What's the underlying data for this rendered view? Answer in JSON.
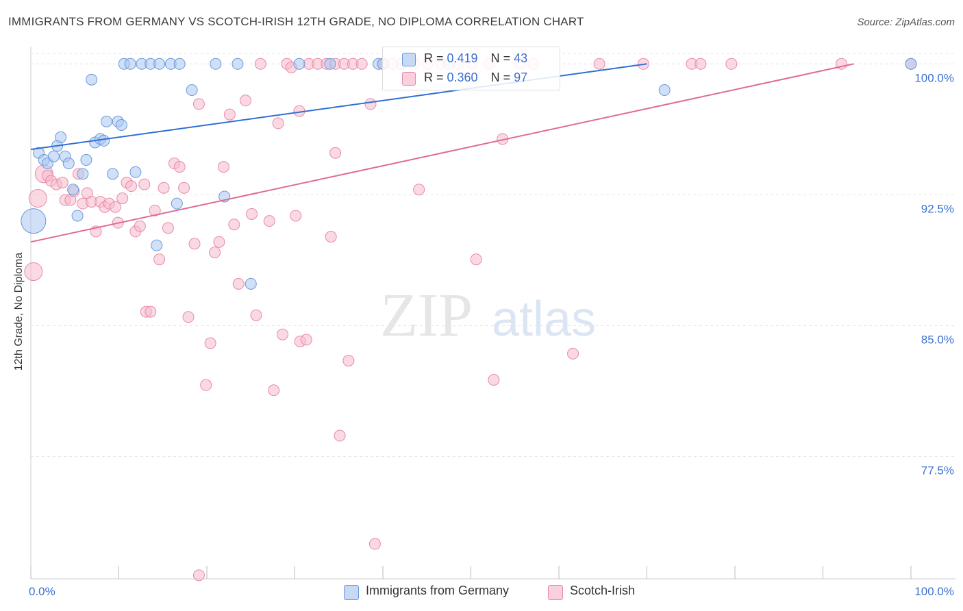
{
  "title": "IMMIGRANTS FROM GERMANY VS SCOTCH-IRISH 12TH GRADE, NO DIPLOMA CORRELATION CHART",
  "source": "Source: ZipAtlas.com",
  "watermark": {
    "zip": "ZIP",
    "atlas": "atlas"
  },
  "colors": {
    "blue_fill": "#a9c6ee",
    "blue_stroke": "#6a98dc",
    "blue_line": "#2d6fd4",
    "pink_fill": "#f5b9cc",
    "pink_stroke": "#e88aa8",
    "pink_line": "#e06b93",
    "axis_text": "#3a6fd1",
    "grid": "#e4e4e4"
  },
  "legend": {
    "rows": [
      {
        "r_label": "R = ",
        "r_value": "0.419",
        "n_label": "N = ",
        "n_value": "43"
      },
      {
        "r_label": "R = ",
        "r_value": "0.360",
        "n_label": "N = ",
        "n_value": "97"
      }
    ]
  },
  "bottom_legend": [
    "Immigrants from Germany",
    "Scotch-Irish"
  ],
  "chart_data": {
    "type": "scatter",
    "title": "IMMIGRANTS FROM GERMANY VS SCOTCH-IRISH 12TH GRADE, NO DIPLOMA CORRELATION CHART",
    "xlabel": "",
    "ylabel": "12th Grade, No Diploma",
    "xlim": [
      0,
      100
    ],
    "ylim": [
      70.5,
      100.6
    ],
    "x_tick_labels": [
      "0.0%",
      "100.0%"
    ],
    "y_ticks": [
      {
        "value": 100.0,
        "label": "100.0%"
      },
      {
        "value": 92.5,
        "label": "92.5%"
      },
      {
        "value": 85.0,
        "label": "85.0%"
      },
      {
        "value": 77.5,
        "label": "77.5%"
      }
    ],
    "series": [
      {
        "name": "Immigrants from Germany",
        "R": 0.419,
        "N": 43,
        "trend": {
          "x0": 0,
          "y0": 95.1,
          "x1": 70,
          "y1": 100.0
        },
        "points": [
          {
            "x": 0.3,
            "y": 91.0,
            "s": 3
          },
          {
            "x": 0.9,
            "y": 94.9,
            "s": 1
          },
          {
            "x": 1.5,
            "y": 94.5,
            "s": 1
          },
          {
            "x": 1.9,
            "y": 94.3,
            "s": 1
          },
          {
            "x": 2.6,
            "y": 94.7,
            "s": 1
          },
          {
            "x": 3.0,
            "y": 95.3,
            "s": 1
          },
          {
            "x": 3.4,
            "y": 95.8,
            "s": 1
          },
          {
            "x": 3.9,
            "y": 94.7,
            "s": 1
          },
          {
            "x": 4.3,
            "y": 94.3,
            "s": 1
          },
          {
            "x": 4.8,
            "y": 92.8,
            "s": 1
          },
          {
            "x": 5.3,
            "y": 91.3,
            "s": 1
          },
          {
            "x": 5.9,
            "y": 93.7,
            "s": 1
          },
          {
            "x": 6.3,
            "y": 94.5,
            "s": 1
          },
          {
            "x": 6.9,
            "y": 99.1,
            "s": 1
          },
          {
            "x": 7.3,
            "y": 95.5,
            "s": 1
          },
          {
            "x": 7.9,
            "y": 95.7,
            "s": 1
          },
          {
            "x": 8.3,
            "y": 95.6,
            "s": 1
          },
          {
            "x": 8.6,
            "y": 96.7,
            "s": 1
          },
          {
            "x": 9.3,
            "y": 93.7,
            "s": 1
          },
          {
            "x": 9.9,
            "y": 96.7,
            "s": 1
          },
          {
            "x": 10.3,
            "y": 96.5,
            "s": 1
          },
          {
            "x": 10.6,
            "y": 100.0,
            "s": 1
          },
          {
            "x": 11.3,
            "y": 100.0,
            "s": 1
          },
          {
            "x": 11.9,
            "y": 93.8,
            "s": 1
          },
          {
            "x": 12.6,
            "y": 100.0,
            "s": 1
          },
          {
            "x": 13.6,
            "y": 100.0,
            "s": 1
          },
          {
            "x": 14.6,
            "y": 100.0,
            "s": 1
          },
          {
            "x": 14.3,
            "y": 89.6,
            "s": 1
          },
          {
            "x": 15.9,
            "y": 100.0,
            "s": 1
          },
          {
            "x": 16.6,
            "y": 92.0,
            "s": 1
          },
          {
            "x": 16.9,
            "y": 100.0,
            "s": 1
          },
          {
            "x": 18.3,
            "y": 98.5,
            "s": 1
          },
          {
            "x": 21.0,
            "y": 100.0,
            "s": 1
          },
          {
            "x": 22.0,
            "y": 92.4,
            "s": 1
          },
          {
            "x": 23.5,
            "y": 100.0,
            "s": 1
          },
          {
            "x": 25.0,
            "y": 87.4,
            "s": 1
          },
          {
            "x": 30.5,
            "y": 100.0,
            "s": 1
          },
          {
            "x": 34.0,
            "y": 100.0,
            "s": 1
          },
          {
            "x": 39.5,
            "y": 100.0,
            "s": 1
          },
          {
            "x": 47.5,
            "y": 100.0,
            "s": 1
          },
          {
            "x": 72.0,
            "y": 98.5,
            "s": 1
          },
          {
            "x": 100.0,
            "y": 100.0,
            "s": 1
          },
          {
            "x": 40.0,
            "y": 100.0,
            "s": 1
          }
        ]
      },
      {
        "name": "Scotch-Irish",
        "R": 0.36,
        "N": 97,
        "trend": {
          "x0": 0,
          "y0": 89.8,
          "x1": 93.5,
          "y1": 100.0
        },
        "points": [
          {
            "x": 0.3,
            "y": 88.1,
            "s": 2
          },
          {
            "x": 0.8,
            "y": 92.3,
            "s": 2
          },
          {
            "x": 1.5,
            "y": 93.7,
            "s": 2
          },
          {
            "x": 1.9,
            "y": 93.6,
            "s": 1
          },
          {
            "x": 2.3,
            "y": 93.3,
            "s": 1
          },
          {
            "x": 2.9,
            "y": 93.1,
            "s": 1
          },
          {
            "x": 3.6,
            "y": 93.2,
            "s": 1
          },
          {
            "x": 3.9,
            "y": 92.2,
            "s": 1
          },
          {
            "x": 4.5,
            "y": 92.2,
            "s": 1
          },
          {
            "x": 4.9,
            "y": 92.7,
            "s": 1
          },
          {
            "x": 5.4,
            "y": 93.7,
            "s": 1
          },
          {
            "x": 5.9,
            "y": 92.0,
            "s": 1
          },
          {
            "x": 6.4,
            "y": 92.6,
            "s": 1
          },
          {
            "x": 6.9,
            "y": 92.1,
            "s": 1
          },
          {
            "x": 7.4,
            "y": 90.4,
            "s": 1
          },
          {
            "x": 7.9,
            "y": 92.1,
            "s": 1
          },
          {
            "x": 8.4,
            "y": 91.8,
            "s": 1
          },
          {
            "x": 8.9,
            "y": 92.0,
            "s": 1
          },
          {
            "x": 9.6,
            "y": 91.8,
            "s": 1
          },
          {
            "x": 9.9,
            "y": 90.9,
            "s": 1
          },
          {
            "x": 10.4,
            "y": 92.3,
            "s": 1
          },
          {
            "x": 10.9,
            "y": 93.2,
            "s": 1
          },
          {
            "x": 11.4,
            "y": 93.0,
            "s": 1
          },
          {
            "x": 11.9,
            "y": 90.4,
            "s": 1
          },
          {
            "x": 12.4,
            "y": 90.7,
            "s": 1
          },
          {
            "x": 12.9,
            "y": 93.1,
            "s": 1
          },
          {
            "x": 13.1,
            "y": 85.8,
            "s": 1
          },
          {
            "x": 13.6,
            "y": 85.8,
            "s": 1
          },
          {
            "x": 14.1,
            "y": 91.6,
            "s": 1
          },
          {
            "x": 14.6,
            "y": 88.8,
            "s": 1
          },
          {
            "x": 15.1,
            "y": 92.9,
            "s": 1
          },
          {
            "x": 15.6,
            "y": 90.6,
            "s": 1
          },
          {
            "x": 16.3,
            "y": 94.3,
            "s": 1
          },
          {
            "x": 16.9,
            "y": 94.1,
            "s": 1
          },
          {
            "x": 17.4,
            "y": 92.9,
            "s": 1
          },
          {
            "x": 17.9,
            "y": 85.5,
            "s": 1
          },
          {
            "x": 18.6,
            "y": 89.7,
            "s": 1
          },
          {
            "x": 19.1,
            "y": 70.7,
            "s": 1
          },
          {
            "x": 19.1,
            "y": 97.7,
            "s": 1
          },
          {
            "x": 19.9,
            "y": 81.6,
            "s": 1
          },
          {
            "x": 20.4,
            "y": 84.0,
            "s": 1
          },
          {
            "x": 20.9,
            "y": 89.2,
            "s": 1
          },
          {
            "x": 21.4,
            "y": 89.8,
            "s": 1
          },
          {
            "x": 21.9,
            "y": 94.1,
            "s": 1
          },
          {
            "x": 22.6,
            "y": 97.1,
            "s": 1
          },
          {
            "x": 23.1,
            "y": 90.8,
            "s": 1
          },
          {
            "x": 23.6,
            "y": 87.4,
            "s": 1
          },
          {
            "x": 24.4,
            "y": 97.9,
            "s": 1
          },
          {
            "x": 25.1,
            "y": 91.4,
            "s": 1
          },
          {
            "x": 25.6,
            "y": 85.6,
            "s": 1
          },
          {
            "x": 26.1,
            "y": 100.0,
            "s": 1
          },
          {
            "x": 27.1,
            "y": 91.0,
            "s": 1
          },
          {
            "x": 27.6,
            "y": 81.3,
            "s": 1
          },
          {
            "x": 28.1,
            "y": 96.6,
            "s": 1
          },
          {
            "x": 28.6,
            "y": 84.5,
            "s": 1
          },
          {
            "x": 29.1,
            "y": 100.0,
            "s": 1
          },
          {
            "x": 29.6,
            "y": 99.8,
            "s": 1
          },
          {
            "x": 30.1,
            "y": 91.3,
            "s": 1
          },
          {
            "x": 30.5,
            "y": 97.3,
            "s": 1
          },
          {
            "x": 30.6,
            "y": 84.1,
            "s": 1
          },
          {
            "x": 31.3,
            "y": 84.2,
            "s": 1
          },
          {
            "x": 31.6,
            "y": 100.0,
            "s": 1
          },
          {
            "x": 32.6,
            "y": 100.0,
            "s": 1
          },
          {
            "x": 33.6,
            "y": 100.0,
            "s": 1
          },
          {
            "x": 34.6,
            "y": 100.0,
            "s": 1
          },
          {
            "x": 34.1,
            "y": 90.1,
            "s": 1
          },
          {
            "x": 34.6,
            "y": 94.9,
            "s": 1
          },
          {
            "x": 35.1,
            "y": 78.7,
            "s": 1
          },
          {
            "x": 35.6,
            "y": 100.0,
            "s": 1
          },
          {
            "x": 36.1,
            "y": 83.0,
            "s": 1
          },
          {
            "x": 36.6,
            "y": 100.0,
            "s": 1
          },
          {
            "x": 37.6,
            "y": 100.0,
            "s": 1
          },
          {
            "x": 38.6,
            "y": 97.7,
            "s": 1
          },
          {
            "x": 39.1,
            "y": 72.5,
            "s": 1
          },
          {
            "x": 40.1,
            "y": 100.0,
            "s": 1
          },
          {
            "x": 42.1,
            "y": 100.0,
            "s": 1
          },
          {
            "x": 43.6,
            "y": 100.0,
            "s": 1
          },
          {
            "x": 44.1,
            "y": 92.8,
            "s": 1
          },
          {
            "x": 45.1,
            "y": 100.0,
            "s": 1
          },
          {
            "x": 46.6,
            "y": 100.0,
            "s": 1
          },
          {
            "x": 48.6,
            "y": 100.0,
            "s": 1
          },
          {
            "x": 50.1,
            "y": 100.0,
            "s": 1
          },
          {
            "x": 50.6,
            "y": 88.8,
            "s": 1
          },
          {
            "x": 52.1,
            "y": 100.0,
            "s": 1
          },
          {
            "x": 52.6,
            "y": 81.9,
            "s": 1
          },
          {
            "x": 53.6,
            "y": 95.7,
            "s": 1
          },
          {
            "x": 55.6,
            "y": 100.0,
            "s": 1
          },
          {
            "x": 57.1,
            "y": 100.0,
            "s": 1
          },
          {
            "x": 61.6,
            "y": 83.4,
            "s": 1
          },
          {
            "x": 64.6,
            "y": 100.0,
            "s": 1
          },
          {
            "x": 69.6,
            "y": 100.0,
            "s": 1
          },
          {
            "x": 75.1,
            "y": 100.0,
            "s": 1
          },
          {
            "x": 76.1,
            "y": 100.0,
            "s": 1
          },
          {
            "x": 79.6,
            "y": 100.0,
            "s": 1
          },
          {
            "x": 92.1,
            "y": 100.0,
            "s": 1
          },
          {
            "x": 100.0,
            "y": 100.0,
            "s": 1
          },
          {
            "x": 41.1,
            "y": 100.0,
            "s": 1
          }
        ]
      }
    ]
  }
}
